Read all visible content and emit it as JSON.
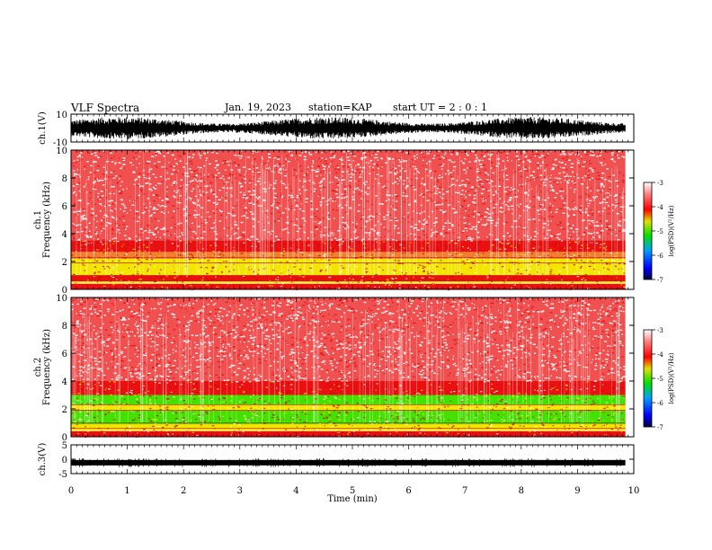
{
  "header": {
    "title": "VLF Spectra",
    "date": "Jan. 19, 2023",
    "station": "station=KAP",
    "start": "start UT =  2 : 0 : 1"
  },
  "colors": {
    "spectrogram_bg": "#f05050",
    "band_red": "#e81010",
    "band_yellow": "#f2e600",
    "band_green": "#44e000",
    "waveform": "#000000",
    "colorbar": [
      "#000040",
      "#0000ff",
      "#00a0ff",
      "#00e000",
      "#e0e000",
      "#ff0000",
      "#ff8080",
      "#ffffff"
    ]
  },
  "chart_data": [
    {
      "type": "line",
      "id": "ch1_waveform",
      "ylabel": "ch.1(V)",
      "yticks": [
        "10",
        "-10"
      ],
      "ylim": [
        -10,
        10
      ],
      "x": [
        0,
        9.85
      ],
      "note_series": "dense oscillating waveform spanning roughly -8 to 8 V"
    },
    {
      "type": "heatmap",
      "id": "ch1_spectrogram",
      "ylabel": "ch.1\nFrequency (kHz)",
      "yticks": [
        "0",
        "2",
        "4",
        "6",
        "8",
        "10"
      ],
      "ylim": [
        0,
        10
      ],
      "xlim": [
        0,
        10
      ],
      "data_end_min": 9.85,
      "bands": [
        {
          "from": 0.0,
          "to": 0.4,
          "level": "red"
        },
        {
          "from": 0.4,
          "to": 0.6,
          "level": "yellow"
        },
        {
          "from": 0.6,
          "to": 1.0,
          "level": "red"
        },
        {
          "from": 1.0,
          "to": 2.2,
          "level": "yellow"
        },
        {
          "from": 2.2,
          "to": 2.7,
          "level": "mixed"
        },
        {
          "from": 2.7,
          "to": 3.5,
          "level": "red"
        },
        {
          "from": 3.5,
          "to": 10.0,
          "level": "speckle"
        }
      ],
      "colorbar": {
        "label": "log(PSD)(V²/Hz)",
        "ticks": [
          "-3",
          "-4",
          "-5",
          "-6",
          "-7"
        ],
        "range": [
          -7,
          -3
        ]
      }
    },
    {
      "type": "heatmap",
      "id": "ch2_spectrogram",
      "ylabel": "ch.2\nFrequency (kHz)",
      "yticks": [
        "0",
        "2",
        "4",
        "6",
        "8",
        "10"
      ],
      "ylim": [
        0,
        10
      ],
      "xlim": [
        0,
        10
      ],
      "data_end_min": 9.85,
      "bands": [
        {
          "from": 0.0,
          "to": 0.4,
          "level": "red"
        },
        {
          "from": 0.4,
          "to": 0.9,
          "level": "yellow"
        },
        {
          "from": 0.9,
          "to": 1.9,
          "level": "green"
        },
        {
          "from": 1.9,
          "to": 2.3,
          "level": "yellow"
        },
        {
          "from": 2.3,
          "to": 3.0,
          "level": "green"
        },
        {
          "from": 3.0,
          "to": 4.0,
          "level": "red"
        },
        {
          "from": 4.0,
          "to": 10.0,
          "level": "speckle"
        }
      ],
      "colorbar": {
        "label": "log(PSD)(V²/Hz)",
        "ticks": [
          "-3",
          "-4",
          "-5",
          "-6",
          "-7"
        ],
        "range": [
          -7,
          -3
        ]
      }
    },
    {
      "type": "line",
      "id": "ch3_waveform",
      "ylabel": "ch.3(V)",
      "yticks": [
        "5",
        "0",
        "-5"
      ],
      "ylim": [
        -5,
        5
      ],
      "x": [
        0,
        9.85
      ],
      "level_v": -1.2
    }
  ],
  "xaxis": {
    "label": "Time (min)",
    "ticks": [
      "0",
      "1",
      "2",
      "3",
      "4",
      "5",
      "6",
      "7",
      "8",
      "9",
      "10"
    ],
    "range": [
      0,
      10
    ]
  }
}
